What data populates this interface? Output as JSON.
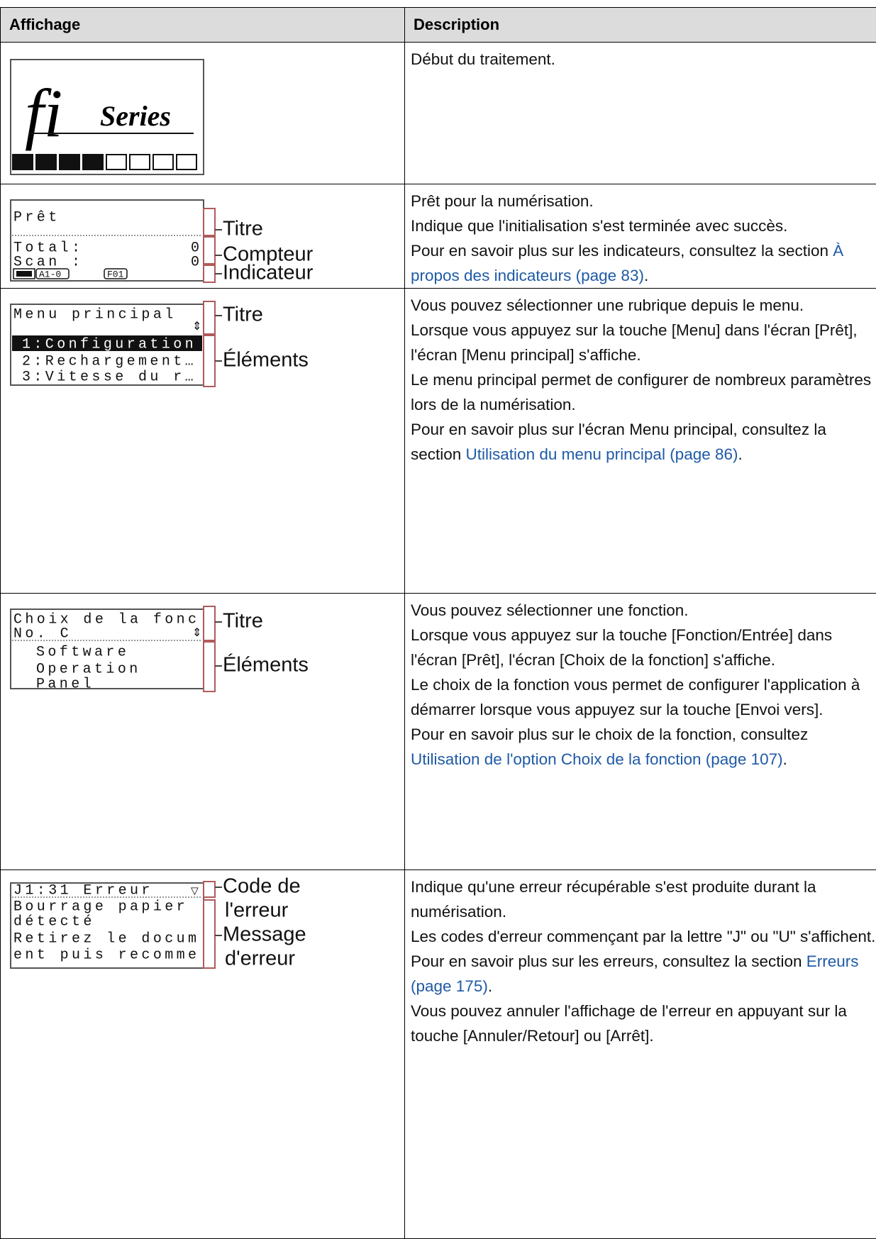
{
  "table": {
    "headers": [
      "Affichage",
      "Description"
    ],
    "rows": [
      {
        "display": {
          "logo": "fi",
          "logo_sub": "Series"
        },
        "description": [
          "Début du traitement."
        ]
      },
      {
        "display": {
          "lines": [
            "Prêt",
            "Total:",
            "0",
            "Scan :",
            "0",
            "A1-0",
            "F01"
          ],
          "callouts": [
            "Titre",
            "Compteur",
            "Indicateur"
          ]
        },
        "description": [
          "Prêt pour la numérisation.",
          "Indique que l'initialisation s'est terminée avec succès.",
          {
            "text": "Pour en savoir plus sur les indicateurs, consultez la section ",
            "link": "À propos des indicateurs (page 83)",
            "after": "."
          }
        ]
      },
      {
        "display": {
          "lines": [
            "Menu principal",
            "1:Configuration",
            "2:Rechargement…",
            "3:Vitesse du r…"
          ],
          "callouts": [
            "Titre",
            "Éléments"
          ]
        },
        "description": [
          "Vous pouvez sélectionner une rubrique depuis le menu.",
          "Lorsque vous appuyez sur la touche [Menu] dans l'écran [Prêt], l'écran [Menu principal] s'affiche.",
          "Le menu principal permet de configurer de nombreux paramètres lors de la numérisation.",
          {
            "text": "Pour en savoir plus sur l'écran Menu principal, consultez la section ",
            "link": "Utilisation du menu principal (page 86)",
            "after": "."
          }
        ]
      },
      {
        "display": {
          "lines": [
            "Choix de la fonc",
            "No. C",
            "Software",
            "Operation",
            "Panel"
          ],
          "callouts": [
            "Titre",
            "Éléments"
          ]
        },
        "description": [
          "Vous pouvez sélectionner une fonction.",
          "Lorsque vous appuyez sur la touche [Fonction/Entrée] dans l'écran [Prêt], l'écran [Choix de la fonction] s'affiche.",
          "Le choix de la fonction vous permet de configurer l'application à démarrer lorsque vous appuyez sur la touche [Envoi vers].",
          {
            "text": "Pour en savoir plus sur le choix de la fonction, consultez ",
            "link": "Utilisation de l'option Choix de la fonction (page 107)",
            "after": "."
          }
        ]
      },
      {
        "display": {
          "lines": [
            "J1:31 Erreur",
            "Bourrage papier",
            "détecté",
            "Retirez le docum",
            "ent puis recomme"
          ],
          "callouts": [
            [
              "Code de",
              "l'erreur"
            ],
            [
              "Message",
              "d'erreur"
            ]
          ]
        },
        "description": [
          "Indique qu'une erreur récupérable s'est produite durant la numérisation.",
          "Les codes d'erreur commençant par la lettre \"J\" ou \"U\" s'affichent.",
          {
            "text": "Pour en savoir plus sur les erreurs, consultez la section ",
            "link": "Erreurs (page 175)",
            "after": "."
          },
          "Vous pouvez annuler l'affichage de l'erreur en appuyant sur la touche [Annuler/Retour] ou [Arrêt]."
        ]
      }
    ]
  }
}
